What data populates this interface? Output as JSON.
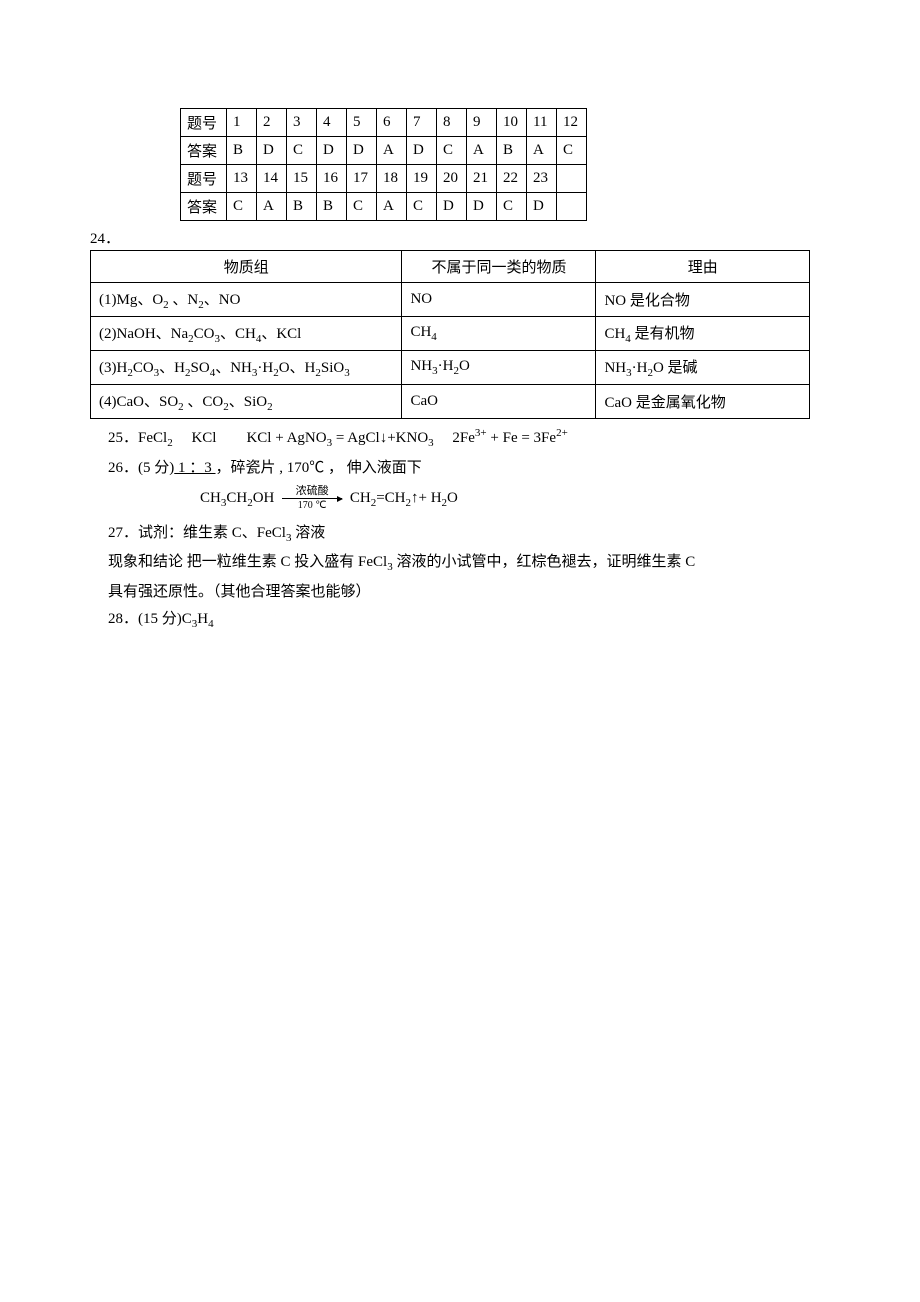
{
  "answer_table": {
    "rows": [
      [
        "题号",
        "1",
        "2",
        "3",
        "4",
        "5",
        "6",
        "7",
        "8",
        "9",
        "10",
        "11",
        "12"
      ],
      [
        "答案",
        "B",
        "D",
        "C",
        "D",
        "D",
        "A",
        "D",
        "C",
        "A",
        "B",
        "A",
        "C"
      ],
      [
        "题号",
        "13",
        "14",
        "15",
        "16",
        "17",
        "18",
        "19",
        "20",
        "21",
        "22",
        "23",
        ""
      ],
      [
        "答案",
        "C",
        "A",
        "B",
        "B",
        "C",
        "A",
        "C",
        "D",
        "D",
        "C",
        "D",
        ""
      ]
    ]
  },
  "q24_label": "24．",
  "substance_table": {
    "header": [
      "物质组",
      "不属于同一类的物质",
      "理由"
    ],
    "rows": [
      {
        "group_prefix": "(1)Mg、O",
        "group_html": "(1)Mg、O<sub>2</sub> 、N<sub>2</sub>、NO",
        "odd": "NO",
        "reason": "NO 是化合物"
      },
      {
        "group_html": "(2)NaOH、Na<sub>2</sub>CO<sub>3</sub>、CH<sub>4</sub>、KCl",
        "odd_html": "CH<sub>4</sub>",
        "reason_html": "CH<sub>4</sub> 是有机物"
      },
      {
        "group_html": "(3)H<sub>2</sub>CO<sub>3</sub>、H<sub>2</sub>SO<sub>4</sub>、NH<sub>3</sub>·H<sub>2</sub>O、H<sub>2</sub>SiO<sub>3</sub>",
        "odd_html": "NH<sub>3</sub>·H<sub>2</sub>O",
        "reason_html": "NH<sub>3</sub>·H<sub>2</sub>O 是碱"
      },
      {
        "group_html": "(4)CaO、SO<sub>2</sub> 、CO<sub>2</sub>、SiO<sub>2</sub>",
        "odd": "CaO",
        "reason": "CaO 是金属氧化物"
      }
    ]
  },
  "q25_html": "25．FeCl<sub>2</sub>  KCl  KCl + AgNO<sub>3</sub> = AgCl↓+KNO<sub>3</sub>  2Fe<sup>3+</sup> + Fe = 3Fe<sup>2+</sup>",
  "q26_prefix": "26．(5 分)",
  "q26_underlined": " 1 ：3 ",
  "q26_rest": "，碎瓷片 , 170℃ ，   伸入液面下",
  "reaction": {
    "left_html": "CH<sub>3</sub>CH<sub>2</sub>OH",
    "arrow_top": "浓硫酸",
    "arrow_bottom": "170 ℃",
    "right_html": "CH<sub>2</sub>=CH<sub>2</sub>↑+ H<sub>2</sub>O"
  },
  "q27_line1_html": "27．试剂：维生素 C、FeCl<sub>3</sub> 溶液",
  "q27_line2_html": "现象和结论 把一粒维生素 C 投入盛有 FeCl<sub>3</sub> 溶液的小试管中，红棕色褪去，证明维生素 C",
  "q27_line3": "具有强还原性。（其他合理答案也能够）",
  "q28_html": "28．(15 分)C<sub>3</sub>H<sub>4</sub>"
}
